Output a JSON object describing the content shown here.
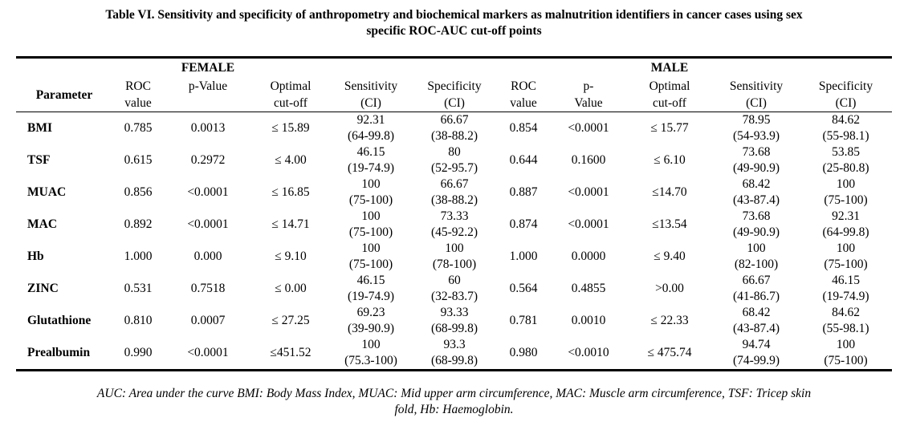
{
  "title": {
    "line1": "Table VI. Sensitivity and specificity of anthropometry and biochemical markers as malnutrition identifiers in cancer cases using sex",
    "line2": "specific ROC-AUC cut-off points"
  },
  "table": {
    "group_female": "FEMALE",
    "group_male": "MALE",
    "headers": {
      "parameter": "Parameter",
      "f_roc": [
        "ROC",
        "value"
      ],
      "f_p": "p-Value",
      "f_opt": [
        "Optimal",
        "cut-off"
      ],
      "f_sens": [
        "Sensitivity",
        "(CI)"
      ],
      "f_spec": [
        "Specificity",
        "(CI)"
      ],
      "m_roc": [
        "ROC",
        "value"
      ],
      "m_p": [
        "p-",
        "Value"
      ],
      "m_opt": [
        "Optimal",
        "cut-off"
      ],
      "m_sens": [
        "Sensitivity",
        "(CI)"
      ],
      "m_spec": [
        "Specificity",
        "(CI)"
      ]
    },
    "rows": [
      {
        "param": "BMI",
        "f_roc": "0.785",
        "f_p": "0.0013",
        "f_opt": "≤ 15.89",
        "f_sens": [
          "92.31",
          "(64-99.8)"
        ],
        "f_spec": [
          "66.67",
          "(38-88.2)"
        ],
        "m_roc": "0.854",
        "m_p": "<0.0001",
        "m_opt": "≤ 15.77",
        "m_sens": [
          "78.95",
          "(54-93.9)"
        ],
        "m_spec": [
          "84.62",
          "(55-98.1)"
        ]
      },
      {
        "param": "TSF",
        "f_roc": "0.615",
        "f_p": "0.2972",
        "f_opt": "≤ 4.00",
        "f_sens": [
          "46.15",
          "(19-74.9)"
        ],
        "f_spec": [
          "80",
          "(52-95.7)"
        ],
        "m_roc": "0.644",
        "m_p": "0.1600",
        "m_opt": "≤ 6.10",
        "m_sens": [
          "73.68",
          "(49-90.9)"
        ],
        "m_spec": [
          "53.85",
          "(25-80.8)"
        ]
      },
      {
        "param": "MUAC",
        "f_roc": "0.856",
        "f_p": "<0.0001",
        "f_opt": "≤ 16.85",
        "f_sens": [
          "100",
          "(75-100)"
        ],
        "f_spec": [
          "66.67",
          "(38-88.2)"
        ],
        "m_roc": "0.887",
        "m_p": "<0.0001",
        "m_opt": "≤14.70",
        "m_sens": [
          "68.42",
          "(43-87.4)"
        ],
        "m_spec": [
          "100",
          "(75-100)"
        ]
      },
      {
        "param": "MAC",
        "f_roc": "0.892",
        "f_p": "<0.0001",
        "f_opt": "≤ 14.71",
        "f_sens": [
          "100",
          "(75-100)"
        ],
        "f_spec": [
          "73.33",
          "(45-92.2)"
        ],
        "m_roc": "0.874",
        "m_p": "<0.0001",
        "m_opt": "≤13.54",
        "m_sens": [
          "73.68",
          "(49-90.9)"
        ],
        "m_spec": [
          "92.31",
          "(64-99.8)"
        ]
      },
      {
        "param": "Hb",
        "f_roc": "1.000",
        "f_p": "0.000",
        "f_opt": "≤ 9.10",
        "f_sens": [
          "100",
          "(75-100)"
        ],
        "f_spec": [
          "100",
          "(78-100)"
        ],
        "m_roc": "1.000",
        "m_p": "0.0000",
        "m_opt": "≤ 9.40",
        "m_sens": [
          "100",
          "(82-100)"
        ],
        "m_spec": [
          "100",
          "(75-100)"
        ]
      },
      {
        "param": "ZINC",
        "f_roc": "0.531",
        "f_p": "0.7518",
        "f_opt": "≤ 0.00",
        "f_sens": [
          "46.15",
          "(19-74.9)"
        ],
        "f_spec": [
          "60",
          "(32-83.7)"
        ],
        "m_roc": "0.564",
        "m_p": "0.4855",
        "m_opt": ">0.00",
        "m_sens": [
          "66.67",
          "(41-86.7)"
        ],
        "m_spec": [
          "46.15",
          "(19-74.9)"
        ]
      },
      {
        "param": "Glutathione",
        "f_roc": "0.810",
        "f_p": "0.0007",
        "f_opt": "≤ 27.25",
        "f_sens": [
          "69.23",
          "(39-90.9)"
        ],
        "f_spec": [
          "93.33",
          "(68-99.8)"
        ],
        "m_roc": "0.781",
        "m_p": "0.0010",
        "m_opt": "≤ 22.33",
        "m_sens": [
          "68.42",
          "(43-87.4)"
        ],
        "m_spec": [
          "84.62",
          "(55-98.1)"
        ]
      },
      {
        "param": "Prealbumin",
        "f_roc": "0.990",
        "f_p": "<0.0001",
        "f_opt": "≤451.52",
        "f_sens": [
          "100",
          "(75.3-100)"
        ],
        "f_spec": [
          "93.3",
          "(68-99.8)"
        ],
        "m_roc": "0.980",
        "m_p": "<0.0010",
        "m_opt": "≤ 475.74",
        "m_sens": [
          "94.74",
          "(74-99.9)"
        ],
        "m_spec": [
          "100",
          "(75-100)"
        ]
      }
    ]
  },
  "footnote": {
    "line1": "AUC: Area under the curve BMI: Body Mass Index, MUAC: Mid upper arm circumference, MAC: Muscle arm circumference, TSF: Tricep skin",
    "line2": "fold, Hb: Haemoglobin."
  }
}
